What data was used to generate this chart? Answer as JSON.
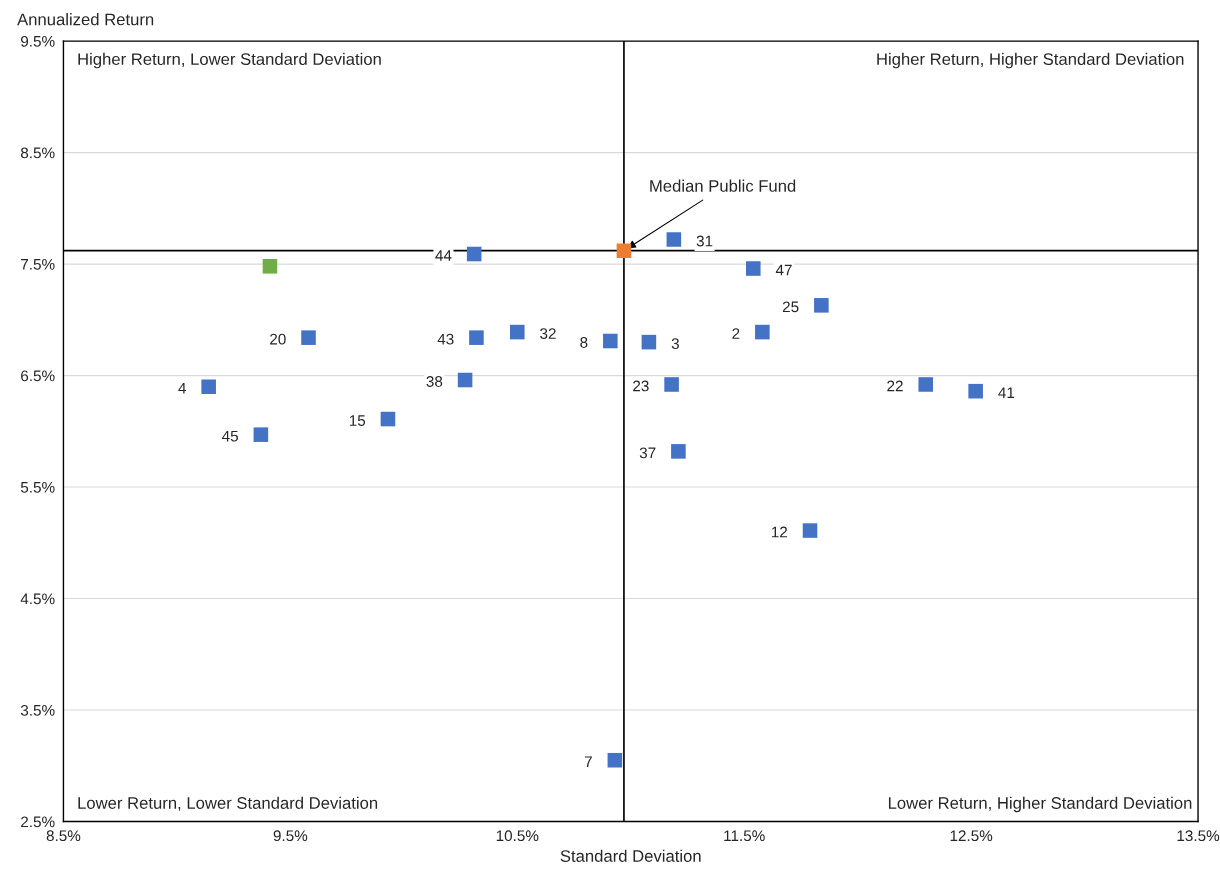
{
  "chart_data": {
    "type": "scatter",
    "xlabel": "Standard Deviation",
    "ylabel": "Annualized Return",
    "xlim": [
      8.5,
      13.5
    ],
    "ylim": [
      2.5,
      9.5
    ],
    "xticks": [
      {
        "value": 8.5,
        "label": "8.5%"
      },
      {
        "value": 9.5,
        "label": "9.5%"
      },
      {
        "value": 10.5,
        "label": "10.5%"
      },
      {
        "value": 11.5,
        "label": "11.5%"
      },
      {
        "value": 12.5,
        "label": "12.5%"
      },
      {
        "value": 13.5,
        "label": "13.5%"
      }
    ],
    "yticks": [
      {
        "value": 2.5,
        "label": "2.5%"
      },
      {
        "value": 3.5,
        "label": "3.5%"
      },
      {
        "value": 4.5,
        "label": "4.5%"
      },
      {
        "value": 5.5,
        "label": "5.5%"
      },
      {
        "value": 6.5,
        "label": "6.5%"
      },
      {
        "value": 7.5,
        "label": "7.5%"
      },
      {
        "value": 8.5,
        "label": "8.5%"
      },
      {
        "value": 9.5,
        "label": "9.5%"
      }
    ],
    "grid": "y",
    "marker": "square",
    "series": [
      {
        "color": "#4472c4",
        "x": [
          10.31,
          11.19,
          11.54,
          11.84,
          11.58,
          11.08,
          10.91,
          10.5,
          10.32,
          9.58,
          9.14,
          9.37,
          9.93,
          10.27,
          11.18,
          11.21,
          12.3,
          12.52,
          11.79,
          10.93
        ],
        "values": [
          7.59,
          7.72,
          7.46,
          7.13,
          6.89,
          6.8,
          6.81,
          6.89,
          6.84,
          6.84,
          6.4,
          5.97,
          6.11,
          6.46,
          6.42,
          5.82,
          6.42,
          6.36,
          5.11,
          3.05
        ]
      },
      {
        "color": "#ed7d31",
        "x": [
          10.97
        ],
        "values": [
          7.62
        ]
      },
      {
        "color": "#70ad47",
        "x": [
          9.41
        ],
        "values": [
          7.48
        ]
      }
    ],
    "ref_lines": [
      {
        "axis": "x",
        "value": 10.97,
        "color": "#000000"
      },
      {
        "axis": "y",
        "value": 7.62,
        "color": "#000000"
      }
    ],
    "annotations": [
      "Higher Return, Lower Standard Deviation",
      "Higher Return, Higher Standard Deviation",
      "Lower Return, Lower Standard Deviation",
      "Lower Return, Higher Standard Deviation",
      {
        "text": "44",
        "x": 10.31,
        "y": 7.59
      },
      {
        "text": "31",
        "x": 11.19,
        "y": 7.72
      },
      {
        "text": "47",
        "x": 11.54,
        "y": 7.46
      },
      {
        "text": "25",
        "x": 11.84,
        "y": 7.13
      },
      {
        "text": "2",
        "x": 11.58,
        "y": 6.89
      },
      {
        "text": "8",
        "x": 10.91,
        "y": 6.81
      },
      {
        "text": "3",
        "x": 11.08,
        "y": 6.8
      },
      {
        "text": "43",
        "x": 10.32,
        "y": 6.84
      },
      {
        "text": "32",
        "x": 10.5,
        "y": 6.89
      },
      {
        "text": "20",
        "x": 9.58,
        "y": 6.84
      },
      {
        "text": "4",
        "x": 9.14,
        "y": 6.4
      },
      {
        "text": "45",
        "x": 9.37,
        "y": 5.97
      },
      {
        "text": "15",
        "x": 9.93,
        "y": 6.11
      },
      {
        "text": "38",
        "x": 10.27,
        "y": 6.46
      },
      {
        "text": "23",
        "x": 11.18,
        "y": 6.42
      },
      {
        "text": "37",
        "x": 11.21,
        "y": 5.82
      },
      {
        "text": "22",
        "x": 12.3,
        "y": 6.42
      },
      {
        "text": "41",
        "x": 12.52,
        "y": 6.36
      },
      {
        "text": "12",
        "x": 11.79,
        "y": 5.11
      },
      {
        "text": "7",
        "x": 10.93,
        "y": 3.05
      },
      {
        "text": "Median Public Fund",
        "x": 10.97,
        "y": 7.62
      }
    ]
  }
}
